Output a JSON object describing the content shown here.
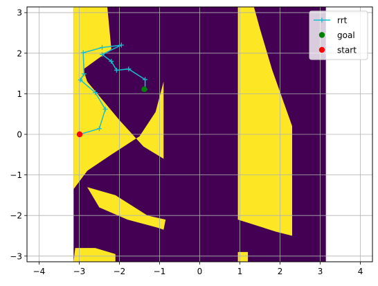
{
  "chart_data": {
    "type": "scatter",
    "title": "",
    "xlabel": "",
    "ylabel": "",
    "xlim": [
      -4.3,
      4.3
    ],
    "ylim": [
      -3.14,
      3.14
    ],
    "x_ticks": [
      -4,
      -3,
      -2,
      -1,
      0,
      1,
      2,
      3,
      4
    ],
    "y_ticks": [
      -3,
      -2,
      -1,
      0,
      1,
      2,
      3
    ],
    "x_tick_labels": [
      "−4",
      "−3",
      "−2",
      "−1",
      "0",
      "1",
      "2",
      "3",
      "4"
    ],
    "y_tick_labels": [
      "−3",
      "−2",
      "−1",
      "0",
      "1",
      "2",
      "3"
    ],
    "grid": true,
    "legend_position": "top-right",
    "colors": {
      "free": "#fde725",
      "obstacle": "#440154",
      "rrt": "#17becf",
      "goal": "#008000",
      "start": "#ff0000"
    },
    "background_map": {
      "x_extent": [
        -3.14,
        3.14
      ],
      "y_extent": [
        -3.14,
        3.14
      ],
      "obstacle_regions": [
        [
          [
            -2.3,
            3.14
          ],
          [
            -0.9,
            3.14
          ],
          [
            -1.5,
            2.5
          ],
          [
            -1.0,
            2.1
          ],
          [
            -0.9,
            1.9
          ],
          [
            -1.1,
            1.6
          ],
          [
            -1.6,
            1.45
          ],
          [
            -2.2,
            2.1
          ]
        ],
        [
          [
            -2.9,
            1.6
          ],
          [
            -2.5,
            1.75
          ],
          [
            -2.0,
            1.0
          ],
          [
            -1.6,
            0.0
          ],
          [
            -1.05,
            -0.85
          ],
          [
            -0.9,
            -0.9
          ],
          [
            -0.9,
            -0.6
          ],
          [
            -1.4,
            -0.3
          ],
          [
            -2.0,
            0.35
          ],
          [
            -2.8,
            1.3
          ]
        ],
        [
          [
            -0.9,
            3.14
          ],
          [
            0.95,
            3.14
          ],
          [
            0.95,
            -3.14
          ],
          [
            -0.85,
            -3.14
          ],
          [
            -0.85,
            -2.1
          ],
          [
            -1.3,
            -2.0
          ],
          [
            -2.1,
            -1.5
          ],
          [
            -2.8,
            -0.9
          ],
          [
            -2.2,
            -0.5
          ],
          [
            -1.5,
            -0.05
          ],
          [
            -1.1,
            0.55
          ],
          [
            -0.9,
            1.3
          ],
          [
            -0.85,
            1.9
          ],
          [
            -0.95,
            2.5
          ]
        ],
        [
          [
            1.35,
            3.14
          ],
          [
            2.3,
            3.14
          ],
          [
            2.9,
            2.2
          ],
          [
            2.1,
            1.2
          ],
          [
            2.3,
            1.0
          ],
          [
            2.3,
            0.2
          ],
          [
            1.8,
            1.6
          ],
          [
            1.5,
            2.6
          ]
        ],
        [
          [
            2.3,
            3.14
          ],
          [
            3.14,
            3.14
          ],
          [
            3.14,
            1.55
          ],
          [
            2.7,
            2.0
          ]
        ],
        [
          [
            2.3,
            0.7
          ],
          [
            3.14,
            1.2
          ],
          [
            3.14,
            -3.14
          ],
          [
            2.3,
            -3.14
          ]
        ],
        [
          [
            -3.14,
            -1.35
          ],
          [
            -2.5,
            -1.8
          ],
          [
            -1.8,
            -2.1
          ],
          [
            -1.05,
            -2.3
          ],
          [
            -0.9,
            -2.35
          ],
          [
            -0.85,
            -3.14
          ],
          [
            -2.1,
            -3.14
          ],
          [
            -2.1,
            -2.95
          ],
          [
            -2.6,
            -2.8
          ],
          [
            -3.1,
            -2.8
          ]
        ],
        [
          [
            0.95,
            -2.1
          ],
          [
            1.9,
            -2.4
          ],
          [
            2.3,
            -2.5
          ],
          [
            2.3,
            -3.14
          ],
          [
            0.95,
            -3.14
          ]
        ]
      ],
      "free_regions": [
        [
          [
            -3.14,
            3.14
          ],
          [
            -2.3,
            3.14
          ],
          [
            -2.2,
            2.1
          ],
          [
            -2.9,
            1.6
          ],
          [
            -2.8,
            1.3
          ],
          [
            -2.0,
            0.35
          ],
          [
            -1.4,
            -0.3
          ],
          [
            -0.9,
            -0.6
          ],
          [
            -0.9,
            1.3
          ],
          [
            -1.1,
            0.55
          ],
          [
            -1.5,
            -0.05
          ],
          [
            -2.2,
            -0.5
          ],
          [
            -2.8,
            -0.9
          ],
          [
            -3.14,
            -1.35
          ]
        ],
        [
          [
            -2.8,
            -1.3
          ],
          [
            -2.1,
            -1.5
          ],
          [
            -1.3,
            -2.0
          ],
          [
            -0.85,
            -2.1
          ],
          [
            -0.9,
            -2.35
          ],
          [
            -1.05,
            -2.3
          ],
          [
            -1.8,
            -2.1
          ],
          [
            -2.5,
            -1.8
          ]
        ],
        [
          [
            -2.1,
            -2.95
          ],
          [
            -2.1,
            -3.14
          ],
          [
            -3.14,
            -3.14
          ],
          [
            -3.1,
            -2.8
          ],
          [
            -2.6,
            -2.8
          ]
        ],
        [
          [
            0.95,
            3.14
          ],
          [
            1.35,
            3.14
          ],
          [
            1.5,
            2.6
          ],
          [
            1.8,
            1.6
          ],
          [
            2.3,
            0.2
          ],
          [
            2.3,
            0.7
          ],
          [
            2.3,
            -2.5
          ],
          [
            1.9,
            -2.4
          ],
          [
            0.95,
            -2.1
          ]
        ],
        [
          [
            0.95,
            -2.9
          ],
          [
            1.2,
            -2.9
          ],
          [
            1.2,
            -3.14
          ],
          [
            0.95,
            -3.14
          ]
        ]
      ]
    },
    "series": [
      {
        "name": "rrt",
        "marker": "+",
        "color": "#17becf",
        "x": [
          -2.99,
          -2.5,
          -2.35,
          -2.6,
          -2.97,
          -2.88,
          -2.9,
          -2.43,
          -1.95,
          -2.43,
          -2.2,
          -2.07,
          -1.77,
          -1.36,
          -1.36
        ],
        "y": [
          0.0,
          0.14,
          0.62,
          1.03,
          1.34,
          1.49,
          2.01,
          2.14,
          2.2,
          1.97,
          1.8,
          1.58,
          1.61,
          1.35,
          1.11
        ]
      },
      {
        "name": "goal",
        "marker": "o",
        "color": "#008000",
        "x": [
          -1.38
        ],
        "y": [
          1.11
        ]
      },
      {
        "name": "start",
        "marker": "o",
        "color": "#ff0000",
        "x": [
          -2.99
        ],
        "y": [
          0.0
        ]
      }
    ]
  }
}
